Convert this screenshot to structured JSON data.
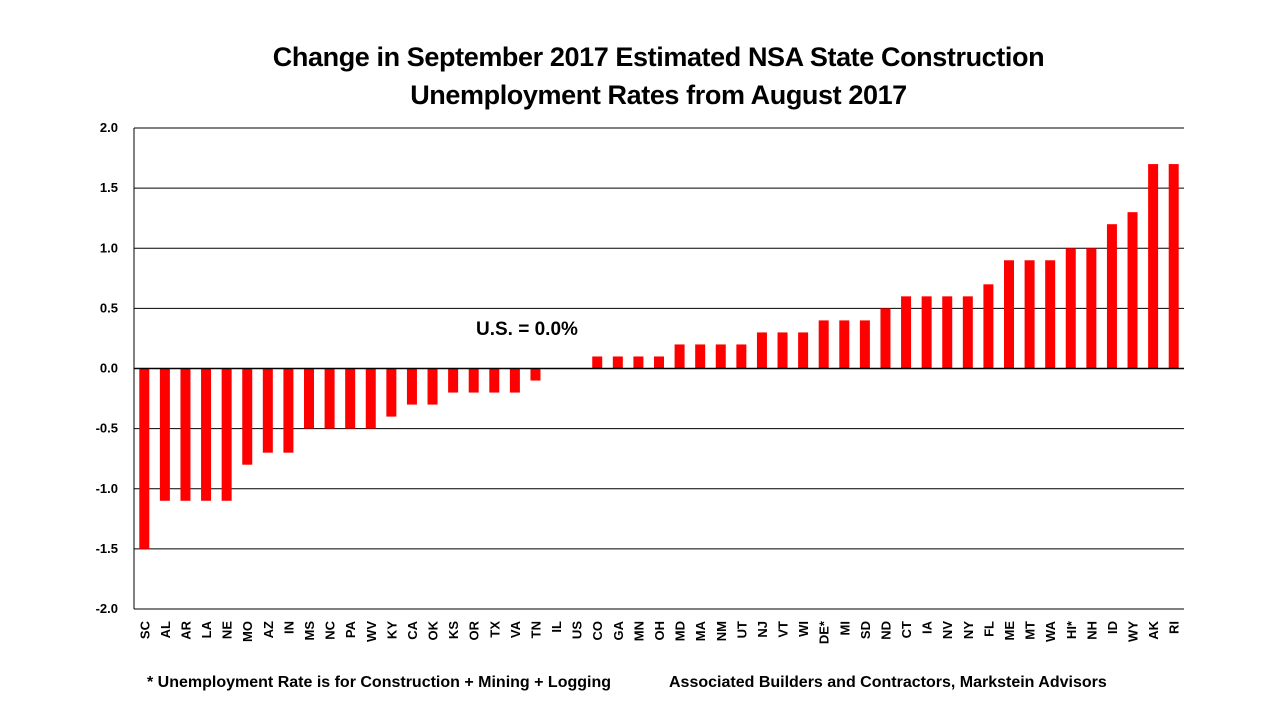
{
  "title_line1": "Change in September 2017 Estimated NSA State Construction",
  "title_line2": "Unemployment Rates from August 2017",
  "footnote": "* Unemployment Rate is for Construction + Mining + Logging",
  "source": "Associated Builders and Contractors, Markstein Advisors",
  "chart_data": {
    "type": "bar",
    "title": "Change in September 2017 Estimated NSA State Construction Unemployment Rates from August 2017",
    "categories": [
      "SC",
      "AL",
      "AR",
      "LA",
      "NE",
      "MO",
      "AZ",
      "IN",
      "MS",
      "NC",
      "PA",
      "WV",
      "KY",
      "CA",
      "OK",
      "KS",
      "OR",
      "TX",
      "VA",
      "TN",
      "IL",
      "US",
      "CO",
      "GA",
      "MN",
      "OH",
      "MD",
      "MA",
      "NM",
      "UT",
      "NJ",
      "VT",
      "WI",
      "DE*",
      "MI",
      "SD",
      "ND",
      "CT",
      "IA",
      "NV",
      "NY",
      "FL",
      "ME",
      "MT",
      "WA",
      "HI*",
      "NH",
      "ID",
      "WY",
      "AK",
      "RI"
    ],
    "values": [
      -1.5,
      -1.1,
      -1.1,
      -1.1,
      -1.1,
      -0.8,
      -0.7,
      -0.7,
      -0.5,
      -0.5,
      -0.5,
      -0.5,
      -0.4,
      -0.3,
      -0.3,
      -0.2,
      -0.2,
      -0.2,
      -0.2,
      -0.1,
      0.0,
      0.0,
      0.1,
      0.1,
      0.1,
      0.1,
      0.2,
      0.2,
      0.2,
      0.2,
      0.3,
      0.3,
      0.3,
      0.4,
      0.4,
      0.4,
      0.5,
      0.6,
      0.6,
      0.6,
      0.6,
      0.7,
      0.9,
      0.9,
      0.9,
      1.0,
      1.0,
      1.2,
      1.3,
      1.7,
      1.7
    ],
    "ylim": [
      -2.0,
      2.0
    ],
    "yticks": [
      "2.0",
      "1.5",
      "1.0",
      "0.5",
      "0.0",
      "-0.5",
      "-1.0",
      "-1.5",
      "-2.0"
    ],
    "ytick_values": [
      2.0,
      1.5,
      1.0,
      0.5,
      0.0,
      -0.5,
      -1.0,
      -1.5,
      -2.0
    ],
    "annotation": "U.S. = 0.0%",
    "bar_color": "#ff0000",
    "grid": true,
    "legend": "none"
  }
}
